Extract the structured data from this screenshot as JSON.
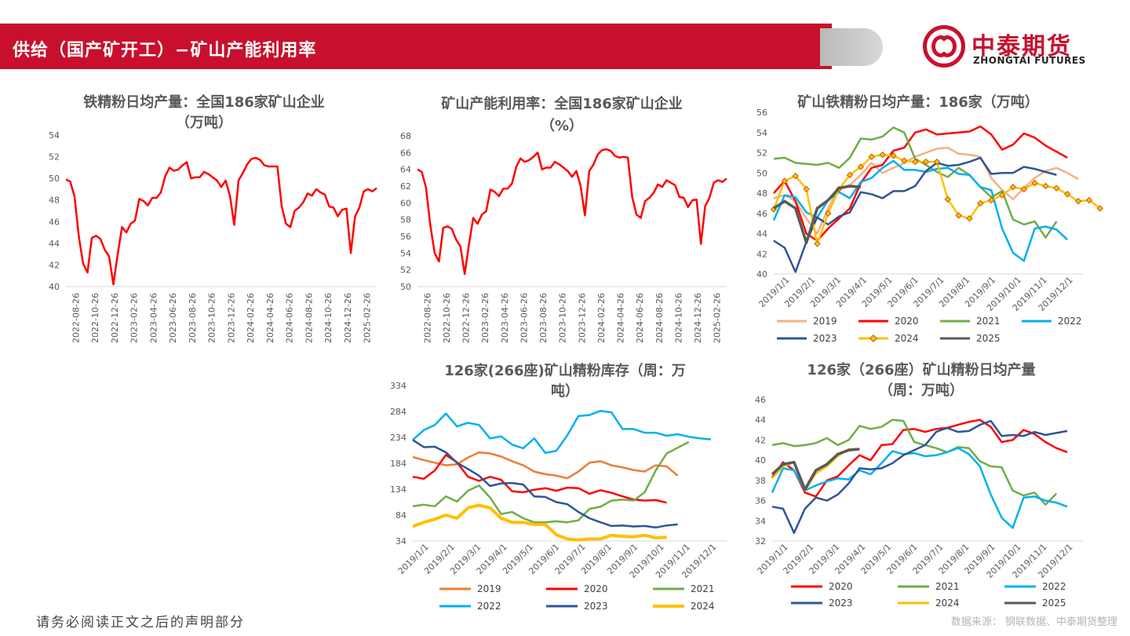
{
  "header": {
    "title": "供给（国产矿开工）−矿山产能利用率",
    "logo_cn": "中泰期货",
    "logo_en": "ZHONGTAI FUTURES"
  },
  "footer": {
    "disclaimer": "请务必阅读正文之后的声明部分",
    "source": "数据来源：  钢联数据、中泰期货整理"
  },
  "colors": {
    "banner": "#c8102e",
    "line_red": "#ff0000"
  },
  "charts": [
    {
      "id": "c1",
      "title_lines": [
        "铁精粉日均产量：全国186家矿山企业",
        "（万吨）"
      ],
      "type": "line",
      "y_ticks": [
        40,
        42,
        44,
        46,
        48,
        50,
        52,
        54
      ],
      "ylim": [
        40,
        54
      ],
      "x_ticks": [
        "2022-08-26",
        "2022-10-26",
        "2022-12-26",
        "2023-02-26",
        "2023-04-26",
        "2023-06-26",
        "2023-08-26",
        "2023-10-26",
        "2023-12-26",
        "2024-02-26",
        "2024-04-26",
        "2024-06-26",
        "2024-08-26",
        "2024-10-26",
        "2024-12-26",
        "2025-02-26"
      ],
      "series": [
        {
          "name": "",
          "color": "#ff0000",
          "values": [
            49.9,
            49.7,
            48.3,
            44.6,
            42.1,
            41.3,
            44.5,
            44.7,
            44.4,
            43.4,
            42.8,
            40.2,
            43.0,
            45.5,
            45.0,
            45.8,
            46.1,
            48.1,
            47.9,
            47.5,
            48.2,
            48.2,
            48.7,
            50.2,
            51.0,
            50.7,
            50.8,
            51.2,
            51.5,
            50.0,
            50.1,
            50.1,
            50.6,
            50.4,
            50.1,
            49.8,
            49.2,
            49.8,
            48.4,
            45.7,
            49.8,
            50.5,
            51.3,
            51.8,
            51.9,
            51.7,
            51.2,
            51.1,
            51.1,
            51.1,
            47.4,
            45.8,
            45.5,
            47.0,
            47.3,
            47.8,
            48.6,
            48.4,
            49.0,
            48.7,
            48.5,
            47.4,
            47.3,
            46.5,
            47.1,
            47.2,
            43.1,
            46.5,
            47.3,
            48.8,
            49.0,
            48.8,
            49.1
          ]
        }
      ]
    },
    {
      "id": "c2",
      "title_lines": [
        "矿山产能利用率：全国186家矿山企业",
        "（%）"
      ],
      "type": "line",
      "y_ticks": [
        50,
        52,
        54,
        56,
        58,
        60,
        62,
        64,
        66,
        68
      ],
      "ylim": [
        50,
        68
      ],
      "x_ticks": [
        "2022-08-26",
        "2022-10-26",
        "2022-12-26",
        "2023-02-26",
        "2023-04-26",
        "2023-06-26",
        "2023-08-26",
        "2023-10-26",
        "2023-12-26",
        "2024-02-26",
        "2024-04-26",
        "2024-06-26",
        "2024-08-26",
        "2024-10-26",
        "2024-12-26",
        "2025-02-26"
      ],
      "series": [
        {
          "name": "",
          "color": "#ff0000",
          "values": [
            64.0,
            63.7,
            61.8,
            57.3,
            54.0,
            53.0,
            57.0,
            57.2,
            56.9,
            55.6,
            54.8,
            51.5,
            55.1,
            58.2,
            57.5,
            58.6,
            59.0,
            61.6,
            61.3,
            60.8,
            61.7,
            61.7,
            62.3,
            64.3,
            65.3,
            64.9,
            65.1,
            65.5,
            66.0,
            64.0,
            64.2,
            64.2,
            64.9,
            64.6,
            64.2,
            63.8,
            63.1,
            63.8,
            62.0,
            58.5,
            63.8,
            64.6,
            65.8,
            66.3,
            66.4,
            66.2,
            65.6,
            65.4,
            65.5,
            65.4,
            60.7,
            58.6,
            58.2,
            60.2,
            60.6,
            61.2,
            62.2,
            61.9,
            62.7,
            62.4,
            62.1,
            60.7,
            60.6,
            59.5,
            60.3,
            60.4,
            55.1,
            59.6,
            60.6,
            62.4,
            62.7,
            62.5,
            62.9
          ]
        }
      ]
    },
    {
      "id": "c3",
      "title_lines": [
        "矿山铁精粉日均产量：186家（万吨）"
      ],
      "type": "line",
      "y_ticks": [
        40,
        42,
        44,
        46,
        48,
        50,
        52,
        54,
        56
      ],
      "ylim": [
        40,
        56
      ],
      "x_ticks": [
        "2019/1/1",
        "2019/2/1",
        "2019/3/1",
        "2019/4/1",
        "2019/5/1",
        "2019/6/1",
        "2019/7/1",
        "2019/8/1",
        "2019/9/1",
        "2019/10/1",
        "2019/11/1",
        "2019/12/1"
      ],
      "legend": [
        "2019",
        "2020",
        "2021",
        "2022",
        "2023",
        "2024",
        "2025"
      ],
      "series": [
        {
          "name": "2019",
          "color": "#f4b183",
          "values": [
            47.5,
            47.8,
            47.2,
            45.5,
            44.0,
            46.5,
            48.5,
            48.8,
            49.8,
            51.0,
            50.0,
            50.5,
            51.0,
            51.6,
            52.0,
            52.4,
            52.5,
            51.9,
            51.8,
            51.6,
            49.5,
            48.3,
            47.4,
            48.5,
            49.5,
            50.2,
            50.5,
            50.0,
            49.4
          ]
        },
        {
          "name": "2020",
          "color": "#ff0000",
          "values": [
            48.0,
            49.2,
            47.2,
            44.0,
            43.3,
            44.5,
            45.5,
            46.5,
            49.0,
            50.5,
            50.8,
            52.2,
            52.5,
            54.0,
            54.3,
            53.8,
            53.9,
            54.0,
            54.1,
            54.6,
            53.8,
            52.3,
            52.8,
            53.9,
            53.5,
            52.7,
            52.1,
            51.5
          ]
        },
        {
          "name": "2021",
          "color": "#70ad47",
          "values": [
            51.4,
            51.5,
            51.0,
            50.9,
            50.8,
            51.0,
            50.5,
            51.5,
            53.4,
            53.3,
            53.6,
            54.5,
            54.0,
            51.4,
            50.8,
            50.1,
            49.6,
            50.5,
            49.8,
            48.6,
            47.6,
            48.2,
            45.4,
            44.9,
            45.2,
            43.6,
            45.2
          ]
        },
        {
          "name": "2022",
          "color": "#00b0f0",
          "values": [
            45.3,
            47.8,
            47.6,
            46.1,
            45.6,
            47.3,
            48.1,
            47.5,
            49.1,
            49.5,
            50.5,
            51.2,
            50.3,
            50.3,
            50.1,
            50.4,
            50.5,
            49.9,
            49.8,
            48.6,
            48.3,
            44.5,
            42.1,
            41.3,
            44.5,
            44.7,
            44.4,
            43.4
          ]
        },
        {
          "name": "2023",
          "color": "#2f5597",
          "values": [
            43.3,
            42.6,
            40.2,
            43.2,
            45.6,
            44.9,
            45.7,
            46.1,
            48.1,
            47.9,
            47.5,
            48.2,
            48.2,
            48.7,
            50.2,
            51.0,
            50.7,
            50.8,
            51.1,
            51.5,
            49.9,
            50.0,
            50.0,
            50.6,
            50.4,
            50.1,
            49.8
          ]
        },
        {
          "name": "2024",
          "color": "#ffc000",
          "marker": true,
          "values": [
            46.4,
            49.2,
            49.7,
            48.4,
            43.0,
            46.0,
            48.4,
            49.8,
            50.6,
            51.6,
            51.8,
            51.7,
            51.2,
            51.1,
            51.1,
            51.1,
            47.4,
            45.8,
            45.5,
            47.0,
            47.3,
            47.8,
            48.6,
            48.4,
            49.0,
            48.7,
            48.5,
            47.9,
            47.2,
            47.3,
            46.5
          ]
        },
        {
          "name": "2025",
          "color": "#595959",
          "values": [
            46.5,
            47.2,
            46.5,
            43.1,
            46.5,
            47.3,
            48.5,
            48.7,
            48.6
          ]
        }
      ]
    },
    {
      "id": "c4",
      "title_lines": [
        "126家(266座)矿山精粉库存（周：万",
        "吨）"
      ],
      "type": "line",
      "y_ticks": [
        34,
        84,
        134,
        184,
        234,
        284,
        334
      ],
      "ylim": [
        34,
        334
      ],
      "x_ticks": [
        "2019/1/1",
        "2019/2/1",
        "2019/3/1",
        "2019/4/1",
        "2019/5/1",
        "2019/6/1",
        "2019/7/1",
        "2019/8/1",
        "2019/9/1",
        "2019/10/1",
        "2019/11/1",
        "2019/12/1"
      ],
      "legend": [
        "2019",
        "2020",
        "2021",
        "2022",
        "2023",
        "2024"
      ],
      "series": [
        {
          "name": "2019",
          "color": "#ed7d31",
          "values": [
            196,
            190,
            185,
            180,
            182,
            195,
            205,
            203,
            197,
            188,
            180,
            168,
            163,
            160,
            155,
            168,
            185,
            188,
            180,
            176,
            171,
            168,
            180,
            178,
            160
          ]
        },
        {
          "name": "2020",
          "color": "#ff0000",
          "values": [
            158,
            154,
            170,
            200,
            186,
            158,
            150,
            158,
            152,
            130,
            128,
            133,
            136,
            131,
            137,
            136,
            125,
            132,
            127,
            120,
            114,
            112,
            113,
            108
          ]
        },
        {
          "name": "2021",
          "color": "#70ad47",
          "values": [
            101,
            104,
            101,
            120,
            110,
            131,
            141,
            118,
            86,
            90,
            78,
            70,
            70,
            72,
            70,
            74,
            96,
            100,
            112,
            114,
            112,
            128,
            170,
            203,
            214,
            225
          ]
        },
        {
          "name": "2022",
          "color": "#00b0f0",
          "values": [
            229,
            248,
            258,
            280,
            255,
            262,
            258,
            232,
            236,
            220,
            213,
            232,
            204,
            208,
            238,
            275,
            277,
            285,
            282,
            250,
            250,
            243,
            243,
            237,
            240,
            235,
            232,
            230
          ]
        },
        {
          "name": "2023",
          "color": "#2f5597",
          "values": [
            229,
            215,
            216,
            205,
            185,
            173,
            160,
            140,
            145,
            146,
            143,
            120,
            119,
            109,
            105,
            90,
            78,
            70,
            63,
            64,
            62,
            63,
            60,
            64,
            66
          ]
        },
        {
          "name": "2024",
          "color": "#ffc000",
          "values": [
            62,
            70,
            76,
            84,
            78,
            98,
            103,
            98,
            78,
            70,
            70,
            66,
            66,
            46,
            38,
            36,
            38,
            38,
            45,
            43,
            42,
            45,
            40,
            41
          ]
        }
      ]
    },
    {
      "id": "c5",
      "title_lines": [
        "126家（266座）矿山精粉日均产量",
        "（周：万吨）"
      ],
      "type": "line",
      "y_ticks": [
        32,
        34,
        36,
        38,
        40,
        42,
        44,
        46
      ],
      "ylim": [
        32,
        46
      ],
      "x_ticks": [
        "2019/1/1",
        "2019/2/1",
        "2019/3/1",
        "2019/4/1",
        "2019/5/1",
        "2019/6/1",
        "2019/7/1",
        "2019/8/1",
        "2019/9/1",
        "2019/10/1",
        "2019/11/1",
        "2019/12/1"
      ],
      "legend": [
        "2020",
        "2021",
        "2022",
        "2023",
        "2024",
        "2025"
      ],
      "series": [
        {
          "name": "2020",
          "color": "#ff0000",
          "values": [
            38.3,
            39.8,
            39.0,
            36.8,
            36.4,
            38.0,
            38.4,
            39.5,
            40.5,
            40.0,
            41.5,
            41.6,
            43.0,
            43.1,
            42.8,
            43.1,
            43.2,
            43.5,
            43.8,
            44.0,
            43.3,
            41.8,
            42.0,
            43.0,
            42.6,
            41.8,
            41.2,
            40.8
          ]
        },
        {
          "name": "2021",
          "color": "#70ad47",
          "values": [
            41.5,
            41.7,
            41.4,
            41.5,
            41.7,
            42.2,
            41.5,
            42.0,
            43.4,
            43.1,
            43.3,
            44.0,
            43.9,
            41.8,
            41.5,
            41.2,
            40.8,
            41.3,
            41.2,
            39.9,
            39.4,
            39.3,
            37.0,
            36.5,
            36.8,
            35.6,
            36.7
          ]
        },
        {
          "name": "2022",
          "color": "#00b0f0",
          "values": [
            36.8,
            39.2,
            39.0,
            37.0,
            37.5,
            37.9,
            38.2,
            38.1,
            39.0,
            38.6,
            39.7,
            40.9,
            40.6,
            40.7,
            40.4,
            40.5,
            40.8,
            41.2,
            40.6,
            39.4,
            36.6,
            34.3,
            33.3,
            36.3,
            36.4,
            36.0,
            35.8,
            35.4
          ]
        },
        {
          "name": "2023",
          "color": "#2f5597",
          "values": [
            35.4,
            35.2,
            32.8,
            35.2,
            36.3,
            36.0,
            36.6,
            37.7,
            39.2,
            39.1,
            39.2,
            39.7,
            40.5,
            41.0,
            41.5,
            42.8,
            43.2,
            42.8,
            42.9,
            43.5,
            43.9,
            42.4,
            42.5,
            42.4,
            42.8,
            42.5,
            42.7,
            42.9
          ]
        },
        {
          "name": "2024",
          "color": "#ffc000",
          "values": [
            38.2,
            39.4,
            39.8,
            37.0,
            38.7,
            39.4,
            40.4,
            41.1,
            41.1
          ]
        },
        {
          "name": "2025",
          "color": "#595959",
          "values": [
            38.6,
            39.6,
            39.8,
            37.1,
            39.0,
            39.6,
            40.6,
            41.0,
            41.1
          ]
        }
      ]
    }
  ]
}
